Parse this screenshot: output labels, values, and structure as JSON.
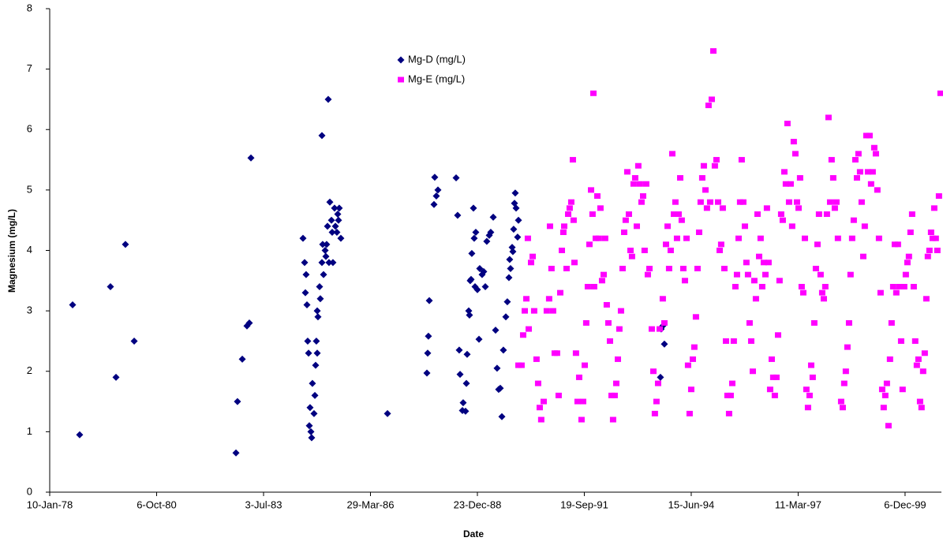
{
  "chart_data": {
    "type": "scatter",
    "x_label": "Date",
    "y_label": "Magnesium (mg/L)",
    "xlim": [
      28500,
      36840
    ],
    "ylim": [
      0,
      8
    ],
    "xticks": [
      {
        "value": 28500,
        "label": "10-Jan-78"
      },
      {
        "value": 29500,
        "label": "6-Oct-80"
      },
      {
        "value": 30500,
        "label": "3-Jul-83"
      },
      {
        "value": 31500,
        "label": "29-Mar-86"
      },
      {
        "value": 32500,
        "label": "23-Dec-88"
      },
      {
        "value": 33500,
        "label": "19-Sep-91"
      },
      {
        "value": 34500,
        "label": "15-Jun-94"
      },
      {
        "value": 35500,
        "label": "11-Mar-97"
      },
      {
        "value": 36500,
        "label": "6-Dec-99"
      }
    ],
    "yticks": [
      0,
      1,
      2,
      3,
      4,
      5,
      6,
      7,
      8
    ],
    "grid": false,
    "legend_position": "top",
    "series": [
      {
        "name": "Mg-D (mg/L)",
        "color": "#000080",
        "marker": "diamond",
        "x": [
          28714,
          28780,
          29068,
          29120,
          29208,
          29290,
          30242,
          30256,
          30301,
          30345,
          30367,
          30382,
          30869,
          30884,
          30891,
          30898,
          30906,
          30913,
          30921,
          30928,
          30935,
          30943,
          30950,
          30957,
          30972,
          30980,
          30987,
          30994,
          31002,
          31002,
          31009,
          31024,
          31031,
          31046,
          31046,
          31053,
          31061,
          31076,
          31083,
          31090,
          31098,
          31105,
          31112,
          31120,
          31135,
          31142,
          31149,
          31164,
          31172,
          31186,
          31194,
          31201,
          31208,
          31223,
          31659,
          32028,
          32035,
          32042,
          32050,
          32094,
          32101,
          32116,
          32131,
          32301,
          32315,
          32330,
          32338,
          32360,
          32367,
          32389,
          32397,
          32404,
          32419,
          32426,
          32433,
          32441,
          32448,
          32463,
          32470,
          32478,
          32485,
          32500,
          32515,
          32522,
          32544,
          32559,
          32574,
          32588,
          32611,
          32625,
          32648,
          32670,
          32684,
          32699,
          32714,
          32729,
          32743,
          32766,
          32780,
          32795,
          32802,
          32810,
          32825,
          32832,
          32839,
          32847,
          32854,
          32862,
          32876,
          32884,
          34219,
          34234,
          34249,
          34212
        ],
        "values": [
          3.1,
          0.95,
          3.4,
          1.9,
          4.1,
          2.5,
          0.65,
          1.5,
          2.2,
          2.75,
          2.8,
          5.53,
          4.2,
          3.8,
          3.3,
          3.6,
          3.1,
          2.5,
          2.3,
          1.1,
          1.4,
          1.0,
          0.9,
          1.8,
          1.3,
          1.6,
          2.1,
          2.5,
          2.3,
          3.0,
          2.9,
          3.4,
          3.2,
          3.8,
          5.9,
          4.1,
          3.6,
          4.0,
          3.9,
          4.1,
          4.4,
          6.5,
          3.8,
          4.8,
          4.5,
          4.3,
          3.8,
          4.7,
          4.4,
          4.3,
          4.6,
          4.5,
          4.7,
          4.2,
          1.3,
          1.97,
          2.3,
          2.58,
          3.17,
          4.76,
          5.21,
          4.9,
          5.0,
          5.2,
          4.58,
          2.35,
          1.95,
          1.35,
          1.48,
          1.34,
          1.8,
          2.28,
          3.0,
          2.93,
          3.5,
          3.52,
          3.95,
          4.7,
          4.2,
          3.4,
          4.3,
          3.35,
          2.53,
          3.7,
          3.6,
          3.65,
          3.4,
          4.15,
          4.25,
          4.3,
          4.55,
          2.68,
          2.05,
          1.7,
          1.72,
          1.25,
          2.35,
          2.9,
          3.15,
          3.55,
          3.85,
          3.7,
          4.05,
          3.98,
          4.35,
          4.78,
          4.95,
          4.7,
          4.22,
          4.5,
          2.7,
          2.75,
          2.45,
          1.9
        ]
      },
      {
        "name": "Mg-E (mg/L)",
        "color": "#ff00ff",
        "marker": "square",
        "x": [
          32884,
          32913,
          32928,
          32943,
          32958,
          32972,
          32980,
          33002,
          33017,
          33031,
          33053,
          33068,
          33083,
          33097,
          33120,
          33149,
          33171,
          33179,
          33193,
          33208,
          33223,
          33245,
          33260,
          33275,
          33290,
          33304,
          33312,
          33334,
          33349,
          33363,
          33378,
          33393,
          33400,
          33408,
          33422,
          33437,
          33452,
          33474,
          33489,
          33504,
          33518,
          33533,
          33548,
          33563,
          33577,
          33585,
          33592,
          33607,
          33622,
          33636,
          33651,
          33666,
          33681,
          33695,
          33710,
          33725,
          33740,
          33755,
          33769,
          33784,
          33799,
          33814,
          33828,
          33843,
          33858,
          33873,
          33887,
          33902,
          33917,
          33932,
          33946,
          33961,
          33976,
          33991,
          34005,
          34020,
          34035,
          34050,
          34064,
          34079,
          34094,
          34109,
          34131,
          34146,
          34160,
          34175,
          34190,
          34205,
          34234,
          34249,
          34264,
          34279,
          34293,
          34308,
          34323,
          34338,
          34352,
          34367,
          34382,
          34397,
          34411,
          34426,
          34441,
          34456,
          34470,
          34485,
          34500,
          34515,
          34529,
          34544,
          34559,
          34574,
          34588,
          34603,
          34618,
          34633,
          34647,
          34662,
          34677,
          34692,
          34707,
          34721,
          34736,
          34751,
          34766,
          34780,
          34795,
          34810,
          34825,
          34839,
          34854,
          34869,
          34884,
          34898,
          34913,
          34928,
          34943,
          34957,
          34972,
          34987,
          35002,
          35016,
          35031,
          35046,
          35061,
          35076,
          35090,
          35105,
          35120,
          35135,
          35149,
          35164,
          35179,
          35194,
          35208,
          35223,
          35238,
          35253,
          35267,
          35282,
          35297,
          35312,
          35326,
          35341,
          35356,
          35371,
          35385,
          35400,
          35415,
          35430,
          35444,
          35459,
          35474,
          35489,
          35504,
          35518,
          35533,
          35548,
          35563,
          35577,
          35592,
          35607,
          35622,
          35636,
          35651,
          35666,
          35681,
          35695,
          35710,
          35725,
          35740,
          35754,
          35769,
          35784,
          35799,
          35813,
          35828,
          35843,
          35858,
          35872,
          35902,
          35917,
          35931,
          35946,
          35961,
          35976,
          35990,
          36005,
          36020,
          36035,
          36050,
          36064,
          36079,
          36094,
          36109,
          36123,
          36138,
          36153,
          36168,
          36182,
          36197,
          36212,
          36227,
          36241,
          36256,
          36271,
          36286,
          36300,
          36315,
          36330,
          36345,
          36359,
          36374,
          36389,
          36404,
          36418,
          36433,
          36448,
          36463,
          36477,
          36492,
          36507,
          36522,
          36536,
          36551,
          36566,
          36581,
          36595,
          36610,
          36625,
          36640,
          36654,
          36669,
          36684,
          36699,
          36713,
          36728,
          36743,
          36758,
          36773,
          36787,
          36802,
          36817,
          36832
        ],
        "values": [
          2.1,
          2.1,
          2.6,
          3.0,
          3.2,
          4.2,
          2.7,
          3.8,
          3.9,
          3.0,
          2.2,
          1.8,
          1.4,
          1.2,
          1.5,
          3.0,
          3.2,
          4.4,
          3.7,
          3.0,
          2.3,
          2.3,
          1.6,
          3.3,
          4.0,
          4.3,
          4.4,
          3.7,
          4.6,
          4.7,
          4.8,
          5.5,
          4.5,
          3.8,
          2.3,
          1.5,
          1.9,
          1.2,
          1.5,
          2.1,
          2.8,
          3.4,
          4.1,
          5.0,
          4.6,
          6.6,
          3.4,
          4.2,
          4.9,
          4.2,
          4.7,
          3.5,
          3.6,
          4.2,
          3.1,
          2.8,
          2.5,
          1.6,
          1.2,
          1.6,
          1.8,
          2.2,
          2.7,
          3.0,
          3.7,
          4.3,
          4.5,
          5.3,
          4.6,
          4.0,
          3.9,
          5.1,
          5.2,
          4.4,
          5.4,
          5.1,
          4.8,
          4.9,
          4.0,
          5.1,
          3.6,
          3.7,
          2.7,
          2.0,
          1.3,
          1.5,
          1.8,
          2.7,
          3.2,
          2.8,
          4.1,
          4.4,
          3.7,
          4.0,
          5.6,
          4.6,
          4.8,
          4.2,
          4.6,
          5.2,
          4.5,
          3.7,
          3.5,
          4.2,
          2.1,
          1.3,
          1.7,
          2.2,
          2.4,
          2.9,
          3.7,
          4.3,
          4.8,
          5.2,
          5.4,
          5.0,
          4.7,
          6.4,
          4.8,
          6.5,
          7.3,
          5.4,
          5.5,
          4.8,
          4.0,
          4.1,
          4.7,
          3.7,
          2.5,
          1.6,
          1.3,
          1.6,
          1.8,
          2.5,
          3.4,
          3.6,
          4.2,
          4.8,
          5.5,
          4.8,
          4.4,
          3.8,
          3.6,
          2.8,
          2.5,
          2.0,
          3.5,
          3.2,
          4.6,
          3.9,
          4.2,
          3.4,
          3.8,
          3.6,
          4.7,
          3.8,
          1.7,
          2.2,
          1.9,
          1.6,
          1.9,
          2.6,
          3.5,
          4.6,
          4.5,
          5.3,
          5.1,
          6.1,
          4.8,
          5.1,
          4.4,
          5.8,
          5.6,
          4.8,
          4.7,
          5.2,
          3.4,
          3.3,
          4.2,
          1.7,
          1.4,
          1.6,
          2.1,
          1.9,
          2.8,
          3.7,
          4.1,
          4.6,
          3.6,
          3.3,
          3.2,
          3.4,
          4.6,
          6.2,
          4.8,
          5.5,
          5.2,
          4.7,
          4.8,
          4.2,
          1.5,
          1.4,
          1.8,
          2.0,
          2.4,
          2.8,
          3.6,
          4.2,
          4.5,
          5.5,
          5.2,
          5.6,
          5.3,
          4.8,
          3.9,
          4.4,
          5.9,
          5.3,
          5.9,
          5.1,
          5.3,
          5.7,
          5.6,
          5.0,
          4.2,
          3.3,
          1.7,
          1.4,
          1.6,
          1.8,
          1.1,
          2.2,
          2.8,
          3.4,
          4.1,
          3.3,
          4.1,
          3.4,
          2.5,
          1.7,
          3.4,
          3.6,
          3.8,
          3.9,
          4.3,
          4.6,
          3.4,
          2.5,
          2.1,
          2.2,
          1.5,
          1.4,
          2.0,
          2.3,
          3.2,
          3.9,
          4.0,
          4.3,
          4.2,
          4.7,
          4.2,
          4.0,
          4.9,
          6.6
        ]
      }
    ]
  }
}
